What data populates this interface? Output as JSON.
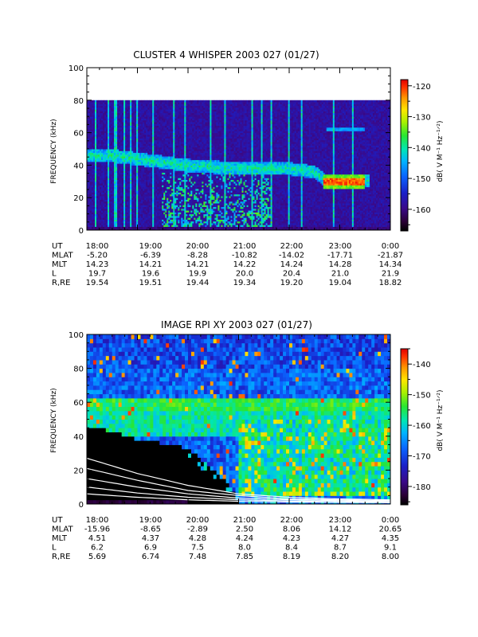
{
  "chart_data": [
    {
      "type": "heatmap",
      "title": "CLUSTER 4 WHISPER 2003 027 (01/27)",
      "ylabel": "FREQUENCY (kHz)",
      "ylim": [
        0,
        100
      ],
      "yticks": [
        "0",
        "20",
        "40",
        "60",
        "80",
        "100"
      ],
      "xlim": [
        "18:00",
        "0:00"
      ],
      "xticks": [
        "18:00",
        "19:00",
        "20:00",
        "21:00",
        "22:00",
        "23:00",
        "0:00"
      ],
      "data_top_khz": 80,
      "colorbar": {
        "label": "dB( V M⁻¹ Hz⁻¹ᐟ²)",
        "range": [
          -167,
          -118
        ],
        "ticks": [
          "-120",
          "-130",
          "-140",
          "-150",
          "-160"
        ]
      },
      "features": [
        {
          "name": "background",
          "level": -158
        },
        {
          "name": "low-frequency band 0-2 kHz",
          "start": "18:00",
          "end": "0:00",
          "freq": [
            0,
            2
          ],
          "level": -162
        },
        {
          "name": "emission band",
          "points": [
            [
              "18:00",
              46
            ],
            [
              "18:30",
              46
            ],
            [
              "19:00",
              44
            ],
            [
              "19:30",
              42
            ],
            [
              "20:00",
              40
            ],
            [
              "20:30",
              39
            ],
            [
              "21:00",
              38
            ],
            [
              "21:30",
              38
            ],
            [
              "22:00",
              38
            ],
            [
              "22:30",
              36
            ],
            [
              "22:45",
              30
            ],
            [
              "23:00",
              30
            ],
            [
              "23:15",
              30
            ],
            [
              "23:35",
              31
            ]
          ],
          "level": -140
        },
        {
          "name": "intense band 22:40-23:30",
          "start": "22:40",
          "end": "23:30",
          "freq": 30,
          "level": -122
        },
        {
          "name": "faint 60 kHz line",
          "start": "22:45",
          "end": "23:30",
          "freq": 62,
          "level": -148
        },
        {
          "name": "broadband 19:30-21:40",
          "start": "19:30",
          "end": "21:40",
          "freq": [
            2,
            36
          ],
          "level": -140
        }
      ],
      "ephemeris": {
        "rows": [
          {
            "label": "UT",
            "values": [
              "18:00",
              "19:00",
              "20:00",
              "21:00",
              "22:00",
              "23:00",
              "0:00"
            ]
          },
          {
            "label": "MLAT",
            "values": [
              "-5.20",
              "-6.39",
              "-8.28",
              "-10.82",
              "-14.02",
              "-17.71",
              "-21.87"
            ]
          },
          {
            "label": "MLT",
            "values": [
              "14.23",
              "14.21",
              "14.21",
              "14.22",
              "14.24",
              "14.28",
              "14.34"
            ]
          },
          {
            "label": "L",
            "values": [
              "19.7",
              "19.6",
              "19.9",
              "20.0",
              "20.4",
              "21.0",
              "21.9"
            ]
          },
          {
            "label": "R,RE",
            "values": [
              "19.54",
              "19.51",
              "19.44",
              "19.34",
              "19.20",
              "19.04",
              "18.82"
            ]
          }
        ]
      }
    },
    {
      "type": "heatmap",
      "title": "IMAGE RPI XY 2003 027 (01/27)",
      "ylabel": "FREQUENCY (kHz)",
      "ylim": [
        0,
        100
      ],
      "yticks": [
        "0",
        "20",
        "40",
        "60",
        "80",
        "100"
      ],
      "xlim": [
        "18:00",
        "0:00"
      ],
      "xticks": [
        "18:00",
        "19:00",
        "20:00",
        "21:00",
        "22:00",
        "23:00",
        "0:00"
      ],
      "colorbar": {
        "label": "dB( V M⁻¹ Hz⁻¹ᐟ²)",
        "range": [
          -186,
          -135
        ],
        "ticks": [
          "-140",
          "-150",
          "-160",
          "-170",
          "-180"
        ]
      },
      "features": [
        {
          "name": "black low-frequency region",
          "level": -190
        },
        {
          "name": "noise 0-5 kHz after 21:00",
          "level": -172
        },
        {
          "name": "plasma-frequency boundary",
          "points": [
            [
              "18:00",
              46
            ],
            [
              "18:30",
              43
            ],
            [
              "19:00",
              38
            ],
            [
              "19:30",
              36
            ],
            [
              "20:00",
              33
            ],
            [
              "20:15",
              27
            ],
            [
              "20:30",
              20
            ],
            [
              "20:45",
              14
            ],
            [
              "21:00",
              5
            ]
          ]
        },
        {
          "name": "band 55-62 kHz",
          "freq": [
            55,
            62
          ],
          "level": -155
        },
        {
          "name": "emissions after 21:00",
          "start": "21:00",
          "end": "0:00",
          "freq": [
            5,
            50
          ],
          "level": -158
        }
      ],
      "curves": [
        {
          "points": [
            [
              "18:00",
              27
            ],
            [
              "19:00",
              18
            ],
            [
              "20:00",
              11
            ],
            [
              "21:00",
              6
            ],
            [
              "22:00",
              4
            ],
            [
              "23:00",
              3
            ],
            [
              "0:00",
              2.5
            ]
          ]
        },
        {
          "points": [
            [
              "18:00",
              21
            ],
            [
              "19:00",
              14
            ],
            [
              "20:00",
              8
            ],
            [
              "21:00",
              5
            ],
            [
              "22:00",
              3
            ],
            [
              "23:00",
              2.5
            ],
            [
              "0:00",
              2
            ]
          ]
        },
        {
          "points": [
            [
              "18:00",
              15
            ],
            [
              "19:00",
              10
            ],
            [
              "20:00",
              6
            ],
            [
              "21:00",
              3.5
            ],
            [
              "22:00",
              2.5
            ],
            [
              "23:00",
              2
            ],
            [
              "0:00",
              1.5
            ]
          ]
        },
        {
          "points": [
            [
              "18:00",
              10
            ],
            [
              "19:00",
              6.5
            ],
            [
              "20:00",
              4
            ],
            [
              "21:00",
              2.5
            ],
            [
              "22:00",
              1.8
            ],
            [
              "23:00",
              1.4
            ],
            [
              "0:00",
              1.2
            ]
          ]
        },
        {
          "points": [
            [
              "18:00",
              6
            ],
            [
              "19:00",
              4
            ],
            [
              "20:00",
              2.5
            ],
            [
              "21:00",
              1.6
            ],
            [
              "22:00",
              1.2
            ],
            [
              "23:00",
              1
            ],
            [
              "0:00",
              0.8
            ]
          ]
        }
      ],
      "ephemeris": {
        "rows": [
          {
            "label": "UT",
            "values": [
              "18:00",
              "19:00",
              "20:00",
              "21:00",
              "22:00",
              "23:00",
              "0:00"
            ]
          },
          {
            "label": "MLAT",
            "values": [
              "-15.96",
              "-8.65",
              "-2.89",
              "2.50",
              "8.06",
              "14.12",
              "20.65"
            ]
          },
          {
            "label": "MLT",
            "values": [
              "4.51",
              "4.37",
              "4.28",
              "4.24",
              "4.23",
              "4.27",
              "4.35"
            ]
          },
          {
            "label": "L",
            "values": [
              "6.2",
              "6.9",
              "7.5",
              "8.0",
              "8.4",
              "8.7",
              "9.1"
            ]
          },
          {
            "label": "R,RE",
            "values": [
              "5.69",
              "6.74",
              "7.48",
              "7.85",
              "8.19",
              "8.20",
              "8.00"
            ]
          }
        ]
      }
    }
  ]
}
